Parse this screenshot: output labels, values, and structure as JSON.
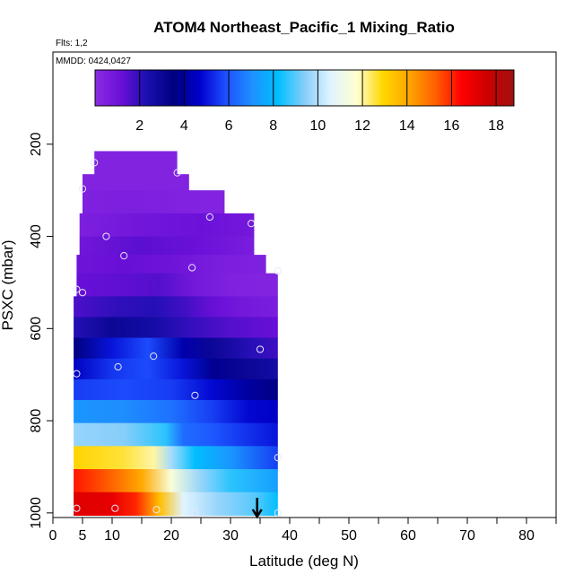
{
  "chart_data": {
    "type": "heatmap",
    "title": "ATOM4 Northeast_Pacific_1 Mixing_Ratio",
    "flights_label": "Flts: 1,2",
    "dates_label": "MMDD: 0424,0427",
    "xlabel": "Latitude (deg N)",
    "ylabel": "PSXC (mbar)",
    "xlim": [
      0,
      85
    ],
    "ylim": [
      1010,
      0
    ],
    "x_ticks": [
      0,
      5,
      10,
      20,
      30,
      40,
      50,
      60,
      70,
      80
    ],
    "x_minor_ticks": [
      15,
      25,
      35,
      45,
      55,
      65,
      75,
      85
    ],
    "y_ticks": [
      200,
      400,
      600,
      800,
      1000
    ],
    "colorbar": {
      "range": [
        0,
        18.8
      ],
      "ticks": [
        2,
        4,
        6,
        8,
        10,
        12,
        14,
        16,
        18
      ],
      "colors": [
        "#8a2be2",
        "#6a0fd8",
        "#1a0fb0",
        "#00007f",
        "#0000cd",
        "#1e50ff",
        "#1e90ff",
        "#00bfff",
        "#87cefa",
        "#e0f4ff",
        "#ffffd0",
        "#ffd700",
        "#ffa500",
        "#ff6000",
        "#ff0000",
        "#cc0000",
        "#a01010"
      ]
    },
    "rows": [
      {
        "p": [
          215,
          265
        ],
        "x": [
          7,
          21
        ],
        "profile": [
          [
            7,
            0.3
          ],
          [
            21,
            0.3
          ]
        ]
      },
      {
        "p": [
          265,
          300
        ],
        "x": [
          5,
          23
        ],
        "profile": [
          [
            5,
            0.3
          ],
          [
            23,
            0.3
          ]
        ]
      },
      {
        "p": [
          300,
          350
        ],
        "x": [
          5,
          29
        ],
        "profile": [
          [
            5,
            0.4
          ],
          [
            12,
            0.5
          ],
          [
            20,
            0.4
          ],
          [
            29,
            0.3
          ]
        ]
      },
      {
        "p": [
          350,
          400
        ],
        "x": [
          4.5,
          34
        ],
        "profile": [
          [
            4.5,
            0.5
          ],
          [
            15,
            0.9
          ],
          [
            25,
            1.1
          ],
          [
            34,
            0.8
          ]
        ]
      },
      {
        "p": [
          400,
          440
        ],
        "x": [
          4.5,
          34
        ],
        "profile": [
          [
            4.5,
            0.9
          ],
          [
            15,
            1.4
          ],
          [
            25,
            1.1
          ],
          [
            34,
            0.6
          ]
        ]
      },
      {
        "p": [
          440,
          480
        ],
        "x": [
          4,
          36
        ],
        "profile": [
          [
            4,
            1.0
          ],
          [
            12,
            1.2
          ],
          [
            20,
            1.0
          ],
          [
            28,
            0.6
          ],
          [
            36,
            0.4
          ]
        ]
      },
      {
        "p": [
          480,
          530
        ],
        "x": [
          4,
          38
        ],
        "profile": [
          [
            4,
            1.2
          ],
          [
            10,
            1.3
          ],
          [
            18,
            1.5
          ],
          [
            24,
            0.8
          ],
          [
            30,
            0.4
          ],
          [
            38,
            0.3
          ]
        ]
      },
      {
        "p": [
          530,
          575
        ],
        "x": [
          3.5,
          38
        ],
        "profile": [
          [
            3.5,
            1.6
          ],
          [
            10,
            2.0
          ],
          [
            17,
            2.2
          ],
          [
            22,
            1.8
          ],
          [
            27,
            1.2
          ],
          [
            32,
            0.8
          ],
          [
            38,
            0.6
          ]
        ]
      },
      {
        "p": [
          575,
          620
        ],
        "x": [
          3.5,
          38
        ],
        "profile": [
          [
            3.5,
            2.2
          ],
          [
            10,
            3.0
          ],
          [
            17,
            2.6
          ],
          [
            23,
            2.0
          ],
          [
            30,
            1.5
          ],
          [
            38,
            1.2
          ]
        ]
      },
      {
        "p": [
          620,
          665
        ],
        "x": [
          3.5,
          38
        ],
        "profile": [
          [
            3.5,
            3.5
          ],
          [
            10,
            5.0
          ],
          [
            16,
            5.8
          ],
          [
            22,
            4.2
          ],
          [
            27,
            3.0
          ],
          [
            33,
            2.2
          ],
          [
            38,
            1.8
          ]
        ]
      },
      {
        "p": [
          665,
          710
        ],
        "x": [
          3.5,
          38
        ],
        "profile": [
          [
            3.5,
            4.5
          ],
          [
            10,
            5.5
          ],
          [
            16,
            5.8
          ],
          [
            22,
            5.0
          ],
          [
            27,
            3.8
          ],
          [
            33,
            3.0
          ],
          [
            38,
            2.6
          ]
        ]
      },
      {
        "p": [
          710,
          755
        ],
        "x": [
          3.5,
          38
        ],
        "profile": [
          [
            3.5,
            5.6
          ],
          [
            12,
            5.8
          ],
          [
            20,
            5.6
          ],
          [
            27,
            4.8
          ],
          [
            33,
            4.0
          ],
          [
            38,
            3.6
          ]
        ]
      },
      {
        "p": [
          755,
          805
        ],
        "x": [
          3.5,
          38
        ],
        "profile": [
          [
            3.5,
            7.2
          ],
          [
            12,
            7.0
          ],
          [
            20,
            6.5
          ],
          [
            27,
            5.6
          ],
          [
            33,
            4.8
          ],
          [
            38,
            4.6
          ]
        ]
      },
      {
        "p": [
          805,
          855
        ],
        "x": [
          3.5,
          38
        ],
        "profile": [
          [
            3.5,
            9.6
          ],
          [
            12,
            9.4
          ],
          [
            19,
            8.6
          ],
          [
            22,
            6.4
          ],
          [
            27,
            6.0
          ],
          [
            33,
            5.4
          ],
          [
            38,
            5.0
          ]
        ]
      },
      {
        "p": [
          855,
          905
        ],
        "x": [
          3.5,
          38
        ],
        "profile": [
          [
            3.5,
            13.0
          ],
          [
            12,
            12.6
          ],
          [
            17,
            12.0
          ],
          [
            20,
            9.8
          ],
          [
            24,
            8.2
          ],
          [
            30,
            7.2
          ],
          [
            38,
            5.6
          ]
        ]
      },
      {
        "p": [
          905,
          955
        ],
        "x": [
          3.5,
          38
        ],
        "profile": [
          [
            3.5,
            16.2
          ],
          [
            10,
            15.2
          ],
          [
            15,
            14.0
          ],
          [
            20,
            11.5
          ],
          [
            25,
            9.6
          ],
          [
            30,
            8.6
          ],
          [
            38,
            7.4
          ]
        ]
      },
      {
        "p": [
          955,
          1005
        ],
        "x": [
          3.5,
          38
        ],
        "profile": [
          [
            3.5,
            17.2
          ],
          [
            10,
            17.0
          ],
          [
            14,
            16.0
          ],
          [
            18,
            13.5
          ],
          [
            22,
            10.6
          ],
          [
            28,
            9.6
          ],
          [
            34,
            9.0
          ],
          [
            38,
            8.2
          ]
        ]
      }
    ],
    "points": [
      {
        "x": 7,
        "y": 240
      },
      {
        "x": 21,
        "y": 262
      },
      {
        "x": 5,
        "y": 297
      },
      {
        "x": 26.5,
        "y": 358
      },
      {
        "x": 33.5,
        "y": 372
      },
      {
        "x": 9,
        "y": 400
      },
      {
        "x": 12,
        "y": 442
      },
      {
        "x": 23.5,
        "y": 468
      },
      {
        "x": 38,
        "y": 475
      },
      {
        "x": 4,
        "y": 515
      },
      {
        "x": 5,
        "y": 522
      },
      {
        "x": 35,
        "y": 645
      },
      {
        "x": 17,
        "y": 660
      },
      {
        "x": 11,
        "y": 683
      },
      {
        "x": 4,
        "y": 698
      },
      {
        "x": 24,
        "y": 745
      },
      {
        "x": 38,
        "y": 880
      },
      {
        "x": 4,
        "y": 990
      },
      {
        "x": 10.5,
        "y": 990
      },
      {
        "x": 17.5,
        "y": 993
      },
      {
        "x": 24,
        "y": 1000
      },
      {
        "x": 38,
        "y": 1000
      }
    ],
    "arrow_x": 34.5,
    "grid": false,
    "legend": "top-colorbar"
  }
}
